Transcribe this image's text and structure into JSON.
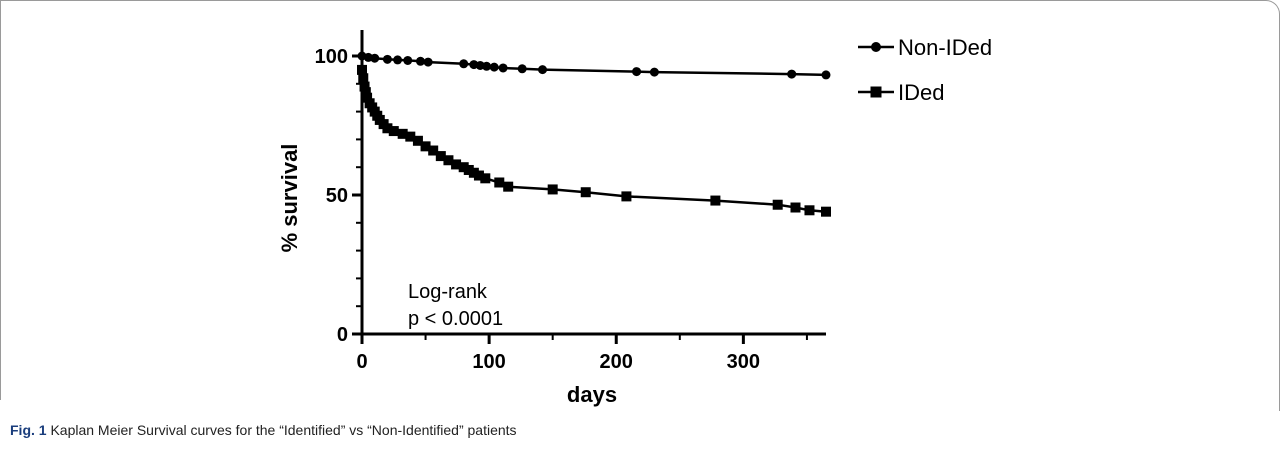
{
  "chart_data": {
    "type": "line",
    "ylabel": "% survival",
    "xlabel": "days",
    "xlim": [
      0,
      365
    ],
    "ylim": [
      0,
      100
    ],
    "x_ticks": [
      0,
      100,
      200,
      300
    ],
    "y_ticks": [
      0,
      50,
      100
    ],
    "x_tick_labels": [
      "0",
      "100",
      "200",
      "300"
    ],
    "y_tick_labels": [
      "0",
      "50",
      "100"
    ],
    "legend_position": "right",
    "annotation": [
      "Log-rank",
      "p < 0.0001"
    ],
    "series": [
      {
        "name": "Non-IDed",
        "marker": "circle",
        "color": "#000000",
        "points": [
          [
            0,
            100
          ],
          [
            5,
            99.5
          ],
          [
            10,
            99.2
          ],
          [
            20,
            98.8
          ],
          [
            28,
            98.6
          ],
          [
            36,
            98.4
          ],
          [
            46,
            98.1
          ],
          [
            52,
            97.8
          ],
          [
            80,
            97.2
          ],
          [
            88,
            96.9
          ],
          [
            93,
            96.6
          ],
          [
            98,
            96.3
          ],
          [
            104,
            96.0
          ],
          [
            111,
            95.7
          ],
          [
            126,
            95.4
          ],
          [
            142,
            95.1
          ],
          [
            216,
            94.4
          ],
          [
            230,
            94.2
          ],
          [
            338,
            93.5
          ],
          [
            365,
            93.2
          ]
        ]
      },
      {
        "name": "IDed",
        "marker": "square",
        "color": "#000000",
        "points": [
          [
            0,
            95
          ],
          [
            1,
            92
          ],
          [
            2,
            89
          ],
          [
            3,
            87
          ],
          [
            4,
            85
          ],
          [
            6,
            83
          ],
          [
            8,
            81.5
          ],
          [
            10,
            80
          ],
          [
            12,
            78.5
          ],
          [
            14,
            77
          ],
          [
            17,
            75.5
          ],
          [
            20,
            74
          ],
          [
            25,
            73
          ],
          [
            32,
            72
          ],
          [
            38,
            71
          ],
          [
            44,
            69.5
          ],
          [
            50,
            67.5
          ],
          [
            56,
            66
          ],
          [
            62,
            64
          ],
          [
            68,
            62.5
          ],
          [
            74,
            61
          ],
          [
            80,
            60
          ],
          [
            84,
            59
          ],
          [
            88,
            58
          ],
          [
            92,
            57
          ],
          [
            97,
            56
          ],
          [
            108,
            54.5
          ],
          [
            115,
            53
          ],
          [
            150,
            52
          ],
          [
            176,
            51
          ],
          [
            208,
            49.5
          ],
          [
            278,
            48
          ],
          [
            327,
            46.5
          ],
          [
            341,
            45.5
          ],
          [
            352,
            44.5
          ],
          [
            365,
            44
          ]
        ]
      }
    ]
  },
  "caption": {
    "label": "Fig. 1",
    "text": " Kaplan Meier Survival curves for the “Identified” vs “Non-Identified” patients"
  }
}
